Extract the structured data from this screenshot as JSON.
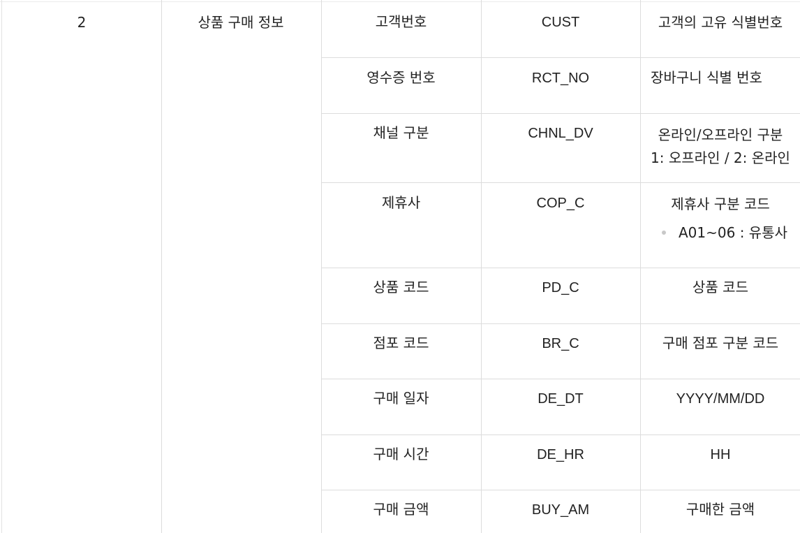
{
  "row_number": "2",
  "group_label": "상품 구매 정보",
  "rows": [
    {
      "name": "고객번호",
      "code": "CUST",
      "desc": [
        "고객의 고유 식별번호"
      ]
    },
    {
      "name": "영수증 번호",
      "code": "RCT_NO",
      "desc": [
        "장바구니 식별 번호"
      ]
    },
    {
      "name": "채널 구분",
      "code": "CHNL_DV",
      "desc": [
        "온라인/오프라인 구분",
        "1: 오프라인 / 2: 온라인"
      ]
    },
    {
      "name": "제휴사",
      "code": "COP_C",
      "desc": [
        "제휴사 구분 코드"
      ],
      "bullet": "A01~06 : 유통사"
    },
    {
      "name": "상품 코드",
      "code": "PD_C",
      "desc": [
        "상품 코드"
      ]
    },
    {
      "name": "점포 코드",
      "code": "BR_C",
      "desc": [
        "구매 점포 구분 코드"
      ]
    },
    {
      "name": "구매 일자",
      "code": "DE_DT",
      "desc": [
        "YYYY/MM/DD"
      ]
    },
    {
      "name": "구매 시간",
      "code": "DE_HR",
      "desc": [
        "HH"
      ]
    },
    {
      "name": "구매 금액",
      "code": "BUY_AM",
      "desc": [
        "구매한 금액"
      ]
    }
  ]
}
